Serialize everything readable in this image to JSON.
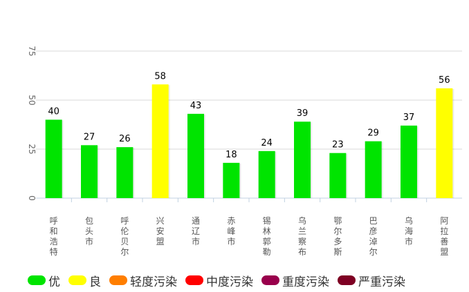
{
  "chart_data": {
    "type": "bar",
    "categories": [
      "呼和浩特市",
      "包头市",
      "呼伦贝尔市",
      "兴安盟",
      "通辽市",
      "赤峰市",
      "锡林郭勒盟",
      "乌兰察布市",
      "鄂尔多斯市",
      "巴彦淖尔市",
      "乌海市",
      "阿拉善盟"
    ],
    "values": [
      40,
      27,
      26,
      58,
      43,
      18,
      24,
      39,
      23,
      29,
      37,
      56
    ],
    "bar_levels": [
      "优",
      "优",
      "优",
      "良",
      "优",
      "优",
      "优",
      "优",
      "优",
      "优",
      "优",
      "良"
    ],
    "ylim": [
      0,
      75
    ],
    "yticks": [
      "0",
      "25",
      "50",
      "75"
    ],
    "grid": true,
    "legend_position": "bottom",
    "legend": [
      {
        "label": "优",
        "color": "#00e400"
      },
      {
        "label": "良",
        "color": "#ffff00"
      },
      {
        "label": "轻度污染",
        "color": "#ff7e00"
      },
      {
        "label": "中度污染",
        "color": "#ff0000"
      },
      {
        "label": "重度污染",
        "color": "#99004c"
      },
      {
        "label": "严重污染",
        "color": "#7e0023"
      }
    ]
  }
}
